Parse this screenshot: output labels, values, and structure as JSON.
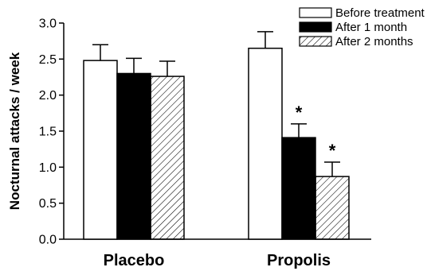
{
  "chart_data": {
    "type": "bar",
    "ylabel": "Nocturnal attacks / week",
    "xlabel": "",
    "ylim": [
      0,
      3.0
    ],
    "yticks": [
      "0.0",
      "0.5",
      "1.0",
      "1.5",
      "2.0",
      "2.5",
      "3.0"
    ],
    "categories": [
      "Placebo",
      "Propolis"
    ],
    "series": [
      {
        "name": "Before treatment",
        "values": [
          2.48,
          2.65
        ],
        "errors": [
          0.22,
          0.23
        ],
        "fill": "#ffffff",
        "pattern": "none"
      },
      {
        "name": "After 1 month",
        "values": [
          2.3,
          1.41
        ],
        "errors": [
          0.21,
          0.19
        ],
        "fill": "#000000",
        "pattern": "none"
      },
      {
        "name": "After 2 months",
        "values": [
          2.26,
          0.87
        ],
        "errors": [
          0.21,
          0.2
        ],
        "fill": "#ffffff",
        "pattern": "diagonal-hatch"
      }
    ],
    "annotations": [
      {
        "category": "Propolis",
        "series": "After 1 month",
        "text": "*"
      },
      {
        "category": "Propolis",
        "series": "After 2 months",
        "text": "*"
      }
    ],
    "legend_position": "top-right",
    "grid": false
  }
}
